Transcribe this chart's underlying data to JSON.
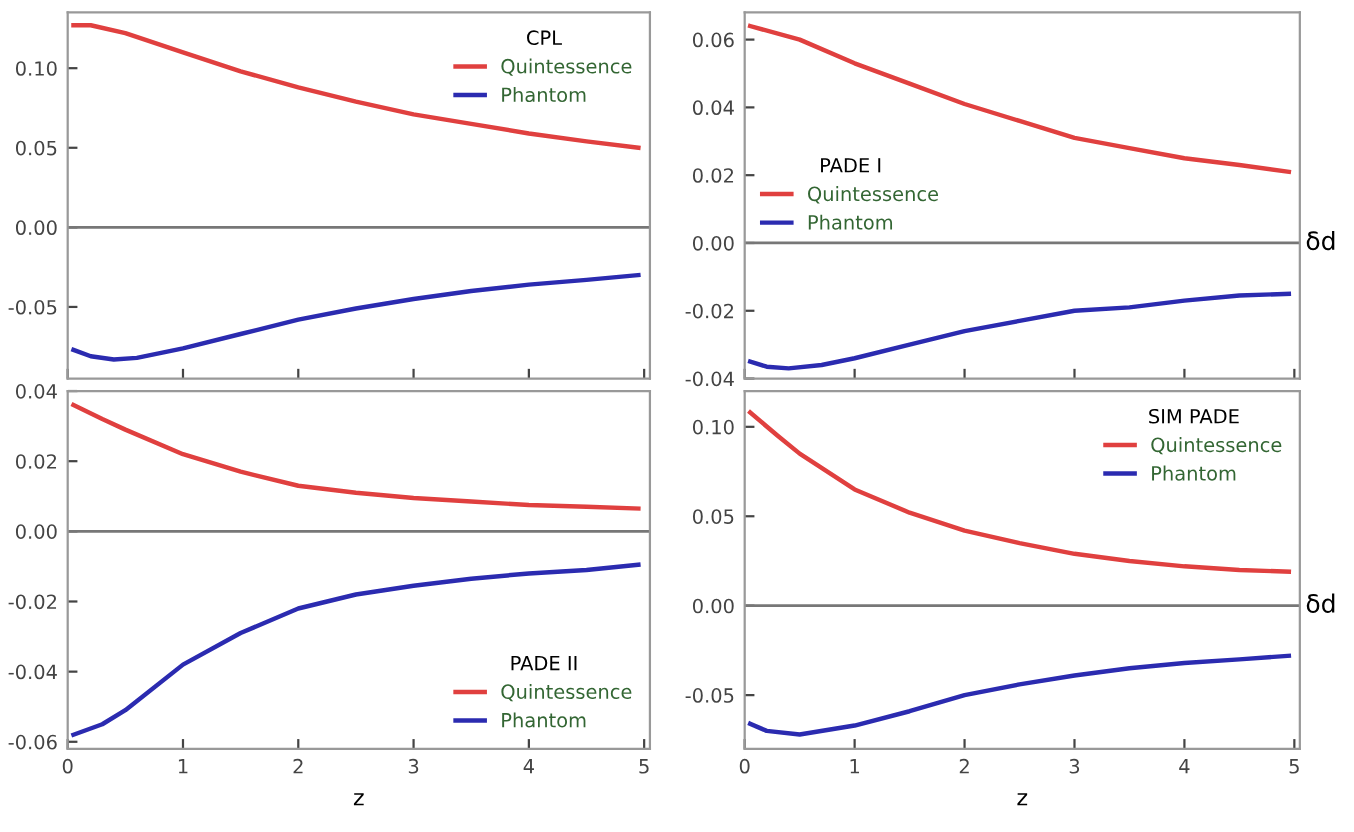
{
  "chart_data": [
    {
      "type": "line",
      "legend_title": "CPL",
      "legend": "top right",
      "tick_labels": "y",
      "grid": false,
      "xlim": [
        0,
        5.05
      ],
      "xticks": [
        0,
        1,
        2,
        3,
        4,
        5
      ],
      "ylim": [
        -0.095,
        0.135
      ],
      "yticks": [
        {
          "value": -0.05,
          "label": "-0.05"
        },
        {
          "value": 0,
          "label": "0.00"
        },
        {
          "value": 0.05,
          "label": "0.05"
        },
        {
          "value": 0.1,
          "label": "0.10"
        }
      ],
      "ref_lines": [
        {
          "axis": "y",
          "value": 0,
          "color": "#777777"
        }
      ],
      "series": [
        {
          "name": "Quintessence",
          "color": "#e0403f",
          "x": [
            0.05,
            0.2,
            0.5,
            1,
            1.5,
            2,
            2.5,
            3,
            3.5,
            4,
            4.5,
            4.95
          ],
          "values": [
            0.127,
            0.127,
            0.122,
            0.11,
            0.098,
            0.088,
            0.079,
            0.071,
            0.065,
            0.059,
            0.054,
            0.05
          ]
        },
        {
          "name": "Phantom",
          "color": "#2b2bb0",
          "x": [
            0.05,
            0.2,
            0.4,
            0.6,
            1,
            1.5,
            2,
            2.5,
            3,
            3.5,
            4,
            4.5,
            4.95
          ],
          "values": [
            -0.077,
            -0.081,
            -0.083,
            -0.082,
            -0.076,
            -0.067,
            -0.058,
            -0.051,
            -0.045,
            -0.04,
            -0.036,
            -0.033,
            -0.03
          ]
        }
      ]
    },
    {
      "type": "line",
      "legend_title": "PADE I",
      "legend": "center left",
      "tick_labels": "y",
      "grid": false,
      "ylabel": "δd",
      "xlim": [
        0,
        5.05
      ],
      "xticks": [
        0,
        1,
        2,
        3,
        4,
        5
      ],
      "ylim": [
        -0.04,
        0.068
      ],
      "yticks": [
        {
          "value": -0.04,
          "label": "-0.04"
        },
        {
          "value": -0.02,
          "label": "-0.02"
        },
        {
          "value": 0,
          "label": "0.00"
        },
        {
          "value": 0.02,
          "label": "0.02"
        },
        {
          "value": 0.04,
          "label": "0.04"
        },
        {
          "value": 0.06,
          "label": "0.06"
        }
      ],
      "ref_lines": [
        {
          "axis": "y",
          "value": 0,
          "color": "#777777"
        }
      ],
      "series": [
        {
          "name": "Quintessence",
          "color": "#e0403f",
          "x": [
            0.05,
            0.5,
            1,
            1.5,
            2,
            2.5,
            3,
            3.5,
            4,
            4.5,
            4.95
          ],
          "values": [
            0.064,
            0.06,
            0.053,
            0.047,
            0.041,
            0.036,
            0.031,
            0.028,
            0.025,
            0.023,
            0.021
          ]
        },
        {
          "name": "Phantom",
          "color": "#2b2bb0",
          "x": [
            0.05,
            0.2,
            0.4,
            0.7,
            1,
            1.5,
            2,
            2.5,
            3,
            3.5,
            4,
            4.5,
            4.95
          ],
          "values": [
            -0.035,
            -0.0365,
            -0.037,
            -0.036,
            -0.034,
            -0.03,
            -0.026,
            -0.023,
            -0.02,
            -0.019,
            -0.017,
            -0.0155,
            -0.015
          ]
        }
      ]
    },
    {
      "type": "line",
      "legend_title": "PADE II",
      "legend": "lower right",
      "grid": false,
      "xlabel": "z",
      "xlim": [
        0,
        5.05
      ],
      "xticks": [
        0,
        1,
        2,
        3,
        4,
        5
      ],
      "ylim": [
        -0.062,
        0.04
      ],
      "yticks": [
        {
          "value": -0.06,
          "label": "-0.06"
        },
        {
          "value": -0.04,
          "label": "-0.04"
        },
        {
          "value": -0.02,
          "label": "-0.02"
        },
        {
          "value": 0,
          "label": "0.00"
        },
        {
          "value": 0.02,
          "label": "0.02"
        },
        {
          "value": 0.04,
          "label": "0.04"
        }
      ],
      "ref_lines": [
        {
          "axis": "y",
          "value": 0,
          "color": "#777777"
        }
      ],
      "series": [
        {
          "name": "Quintessence",
          "color": "#e0403f",
          "x": [
            0.05,
            0.3,
            0.5,
            1,
            1.5,
            2,
            2.5,
            3,
            3.5,
            4,
            4.5,
            4.95
          ],
          "values": [
            0.036,
            0.032,
            0.029,
            0.022,
            0.017,
            0.013,
            0.011,
            0.0095,
            0.0085,
            0.0075,
            0.007,
            0.0065
          ]
        },
        {
          "name": "Phantom",
          "color": "#2b2bb0",
          "x": [
            0.05,
            0.3,
            0.5,
            1,
            1.5,
            2,
            2.5,
            3,
            3.5,
            4,
            4.5,
            4.95
          ],
          "values": [
            -0.058,
            -0.055,
            -0.051,
            -0.038,
            -0.029,
            -0.022,
            -0.018,
            -0.0155,
            -0.0135,
            -0.012,
            -0.011,
            -0.0095
          ]
        }
      ]
    },
    {
      "type": "line",
      "legend_title": "SIM PADE",
      "legend": "upper right",
      "grid": false,
      "xlabel": "z",
      "ylabel": "δd",
      "xlim": [
        0,
        5.05
      ],
      "xticks": [
        0,
        1,
        2,
        3,
        4,
        5
      ],
      "ylim": [
        -0.08,
        0.12
      ],
      "yticks": [
        {
          "value": -0.05,
          "label": "-0.05"
        },
        {
          "value": 0,
          "label": "0.00"
        },
        {
          "value": 0.05,
          "label": "0.05"
        },
        {
          "value": 0.1,
          "label": "0.10"
        }
      ],
      "ref_lines": [
        {
          "axis": "y",
          "value": 0,
          "color": "#777777"
        }
      ],
      "series": [
        {
          "name": "Quintessence",
          "color": "#e0403f",
          "x": [
            0.05,
            0.3,
            0.5,
            1,
            1.5,
            2,
            2.5,
            3,
            3.5,
            4,
            4.5,
            4.95
          ],
          "values": [
            0.108,
            0.095,
            0.085,
            0.065,
            0.052,
            0.042,
            0.035,
            0.029,
            0.025,
            0.022,
            0.02,
            0.019
          ]
        },
        {
          "name": "Phantom",
          "color": "#2b2bb0",
          "x": [
            0.05,
            0.2,
            0.5,
            1,
            1.5,
            2,
            2.5,
            3,
            3.5,
            4,
            4.5,
            4.95
          ],
          "values": [
            -0.066,
            -0.07,
            -0.072,
            -0.067,
            -0.059,
            -0.05,
            -0.044,
            -0.039,
            -0.035,
            -0.032,
            -0.03,
            -0.028
          ]
        }
      ]
    }
  ]
}
